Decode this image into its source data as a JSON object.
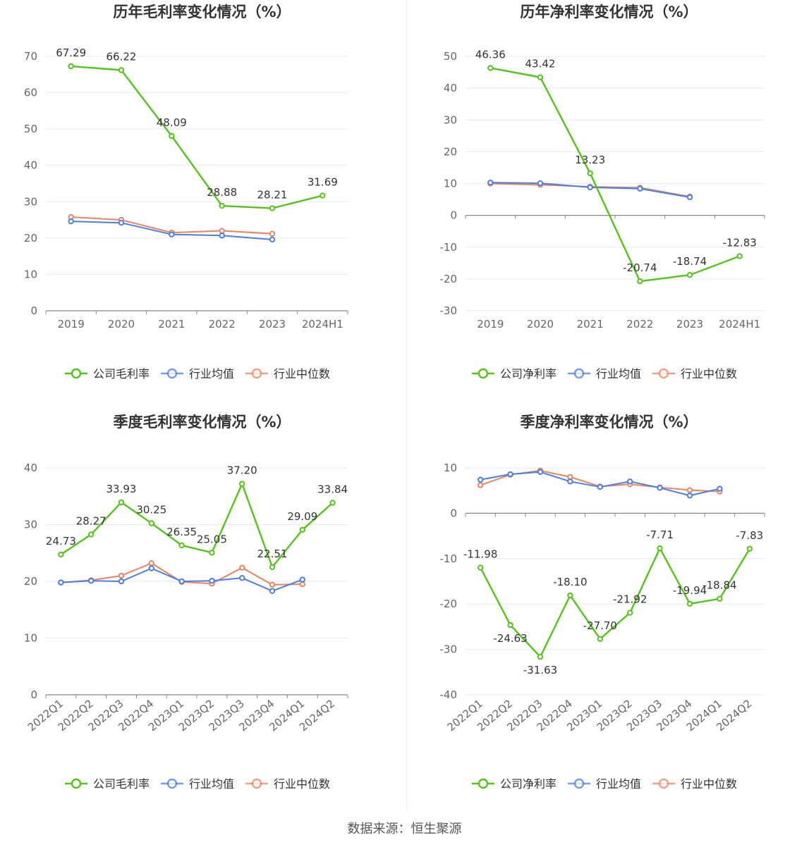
{
  "footer": "数据来源：恒生聚源",
  "colors": {
    "company": "#52c41a",
    "avg": "#4a7ee8",
    "median": "#f0825e",
    "grid": "#e6e9f0",
    "axis": "#888888"
  },
  "chart_data": [
    {
      "type": "line",
      "title": "历年毛利率变化情况（%）",
      "categories": [
        "2019",
        "2020",
        "2021",
        "2022",
        "2023",
        "2024H1"
      ],
      "ylim": [
        0,
        70
      ],
      "yticks": [
        0,
        10,
        20,
        30,
        40,
        50,
        60,
        70
      ],
      "grid": true,
      "legend": "bottom",
      "series": [
        {
          "name": "公司毛利率",
          "values": [
            67.29,
            66.22,
            48.09,
            28.88,
            28.21,
            31.69
          ],
          "labels": [
            "67.29",
            "66.22",
            "48.09",
            "28.88",
            "28.21",
            "31.69"
          ]
        },
        {
          "name": "行业均值",
          "values": [
            24.6,
            24.2,
            21.0,
            20.7,
            19.6,
            null
          ]
        },
        {
          "name": "行业中位数",
          "values": [
            25.8,
            25.0,
            21.5,
            22.0,
            21.2,
            null
          ]
        }
      ]
    },
    {
      "type": "line",
      "title": "历年净利率变化情况（%）",
      "categories": [
        "2019",
        "2020",
        "2021",
        "2022",
        "2023",
        "2024H1"
      ],
      "ylim": [
        -30,
        50
      ],
      "yticks": [
        -30,
        -20,
        -10,
        0,
        10,
        20,
        30,
        40,
        50
      ],
      "grid": true,
      "legend": "bottom",
      "series": [
        {
          "name": "公司净利率",
          "values": [
            46.36,
            43.42,
            13.23,
            -20.74,
            -18.74,
            -12.83
          ],
          "labels": [
            "46.36",
            "43.42",
            "13.23",
            "-20.74",
            "-18.74",
            "-12.83"
          ]
        },
        {
          "name": "行业均值",
          "values": [
            10.3,
            10.1,
            8.8,
            8.4,
            5.7,
            null
          ]
        },
        {
          "name": "行业中位数",
          "values": [
            10.0,
            9.6,
            9.0,
            8.7,
            5.9,
            null
          ]
        }
      ]
    },
    {
      "type": "line",
      "title": "季度毛利率变化情况（%）",
      "categories": [
        "2022Q1",
        "2022Q2",
        "2022Q3",
        "2022Q4",
        "2023Q1",
        "2023Q2",
        "2023Q3",
        "2023Q4",
        "2024Q1",
        "2024Q2"
      ],
      "ylim": [
        0,
        40
      ],
      "yticks": [
        0,
        10,
        20,
        30,
        40
      ],
      "grid": true,
      "legend": "bottom",
      "series": [
        {
          "name": "公司毛利率",
          "values": [
            24.73,
            28.27,
            33.93,
            30.25,
            26.35,
            25.05,
            37.2,
            22.51,
            29.09,
            33.84
          ],
          "labels": [
            "24.73",
            "28.27",
            "33.93",
            "30.25",
            "26.35",
            "25.05",
            "37.20",
            "22.51",
            "29.09",
            "33.84"
          ]
        },
        {
          "name": "行业均值",
          "values": [
            19.8,
            20.1,
            20.0,
            22.3,
            20.0,
            20.1,
            20.6,
            18.3,
            20.3,
            null
          ]
        },
        {
          "name": "行业中位数",
          "values": [
            19.8,
            20.2,
            21.0,
            23.2,
            19.9,
            19.6,
            22.4,
            19.4,
            19.5,
            null
          ]
        }
      ]
    },
    {
      "type": "line",
      "title": "季度净利率变化情况（%）",
      "categories": [
        "2022Q1",
        "2022Q2",
        "2022Q3",
        "2022Q4",
        "2023Q1",
        "2023Q2",
        "2023Q3",
        "2023Q4",
        "2024Q1",
        "2024Q2"
      ],
      "ylim": [
        -40,
        10
      ],
      "yticks": [
        -40,
        -30,
        -20,
        -10,
        0,
        10
      ],
      "grid": true,
      "legend": "bottom",
      "series": [
        {
          "name": "公司净利率",
          "values": [
            -11.98,
            -24.63,
            -31.63,
            -18.1,
            -27.7,
            -21.92,
            -7.71,
            -19.94,
            -18.84,
            -7.83
          ],
          "labels": [
            "-11.98",
            "-24.63",
            "-31.63",
            "-18.10",
            "-27.70",
            "-21.92",
            "-7.71",
            "-19.94",
            "-18.84",
            "-7.83"
          ]
        },
        {
          "name": "行业均值",
          "values": [
            7.4,
            8.6,
            9.1,
            7.0,
            5.8,
            7.0,
            5.6,
            3.9,
            5.4,
            null
          ]
        },
        {
          "name": "行业中位数",
          "values": [
            6.2,
            8.5,
            9.4,
            8.0,
            5.9,
            6.4,
            5.7,
            5.1,
            4.8,
            null
          ]
        }
      ]
    }
  ]
}
